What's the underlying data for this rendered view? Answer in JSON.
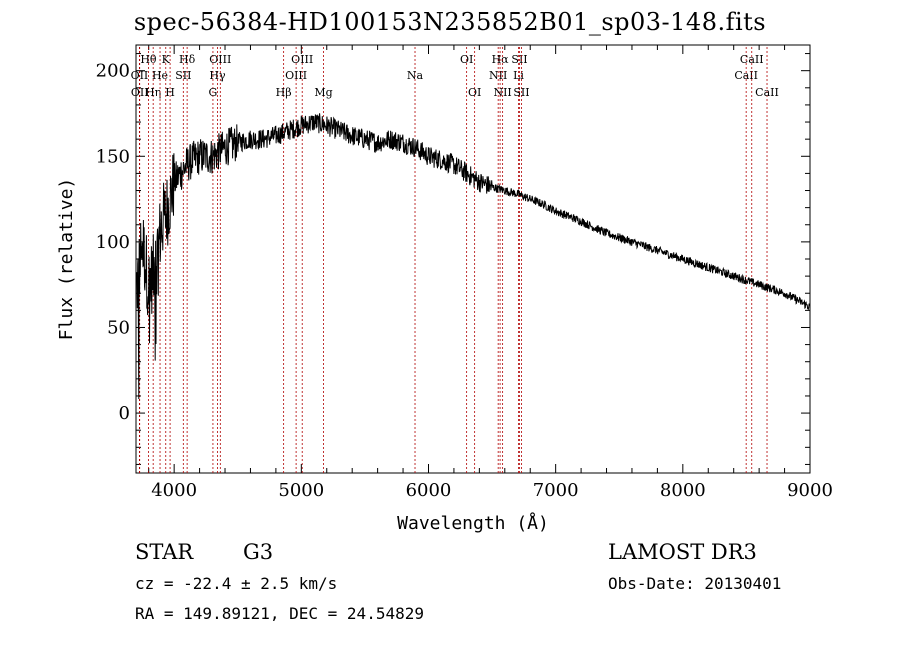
{
  "chart_data": {
    "type": "line",
    "title": "spec-56384-HD100153N235852B01_sp03-148.fits",
    "xlabel": "Wavelength (Å)",
    "ylabel": "Flux (relative)",
    "xlim": [
      3700,
      9000
    ],
    "ylim": [
      -35,
      215
    ],
    "xticks": [
      4000,
      5000,
      6000,
      7000,
      8000,
      9000
    ],
    "yticks": [
      0,
      50,
      100,
      150,
      200
    ],
    "series": [
      {
        "x": [
          3700,
          3750,
          3800,
          3850,
          3900,
          3950,
          4000,
          4050,
          4100,
          4150,
          4200,
          4300,
          4400,
          4500,
          4600,
          4700,
          4800,
          4900,
          5000,
          5100,
          5200,
          5300,
          5400,
          5500,
          5600,
          5700,
          5800,
          5900,
          6000,
          6100,
          6200,
          6300,
          6400,
          6500,
          6600,
          6700,
          6800,
          6900,
          7000,
          7200,
          7400,
          7600,
          7800,
          8000,
          8200,
          8400,
          8600,
          8800,
          9000
        ],
        "values": [
          70,
          100,
          75,
          85,
          110,
          120,
          135,
          140,
          145,
          148,
          150,
          150,
          155,
          158,
          160,
          160,
          162,
          165,
          168,
          170,
          168,
          165,
          162,
          160,
          158,
          160,
          158,
          155,
          150,
          148,
          145,
          140,
          135,
          132,
          130,
          128,
          125,
          122,
          118,
          112,
          105,
          100,
          95,
          90,
          85,
          80,
          75,
          70,
          62
        ]
      }
    ],
    "lines": [
      {
        "label": "Hθ",
        "wl": 3798,
        "row": 1
      },
      {
        "label": "OII",
        "wl": 3727,
        "row": 2
      },
      {
        "label": "OII",
        "wl": 3729,
        "row": 3
      },
      {
        "label": "Hη",
        "wl": 3835,
        "row": 3
      },
      {
        "label": "He",
        "wl": 3889,
        "row": 2
      },
      {
        "label": "K",
        "wl": 3934,
        "row": 1
      },
      {
        "label": "H",
        "wl": 3968,
        "row": 3
      },
      {
        "label": "SII",
        "wl": 4072,
        "row": 2
      },
      {
        "label": "Hδ",
        "wl": 4102,
        "row": 1
      },
      {
        "label": "G",
        "wl": 4305,
        "row": 3
      },
      {
        "label": "Hγ",
        "wl": 4341,
        "row": 2
      },
      {
        "label": "OIII",
        "wl": 4363,
        "row": 1
      },
      {
        "label": "Hβ",
        "wl": 4861,
        "row": 3
      },
      {
        "label": "OIII",
        "wl": 4959,
        "row": 2
      },
      {
        "label": "OIII",
        "wl": 5007,
        "row": 1
      },
      {
        "label": "Mg",
        "wl": 5175,
        "row": 3
      },
      {
        "label": "Na",
        "wl": 5894,
        "row": 2
      },
      {
        "label": "OI",
        "wl": 6300,
        "row": 1
      },
      {
        "label": "OI",
        "wl": 6363,
        "row": 3
      },
      {
        "label": "NII",
        "wl": 6548,
        "row": 2
      },
      {
        "label": "Hα",
        "wl": 6563,
        "row": 1
      },
      {
        "label": "NII",
        "wl": 6583,
        "row": 3
      },
      {
        "label": "SII",
        "wl": 6716,
        "row": 1
      },
      {
        "label": "Li",
        "wl": 6708,
        "row": 2
      },
      {
        "label": "SII",
        "wl": 6731,
        "row": 3
      },
      {
        "label": "CaII",
        "wl": 8498,
        "row": 2
      },
      {
        "label": "CaII",
        "wl": 8542,
        "row": 1
      },
      {
        "label": "CaII",
        "wl": 8662,
        "row": 3
      }
    ]
  },
  "info": {
    "class": "STAR",
    "subclass": "G3",
    "survey": "LAMOST DR3",
    "cz": "cz = -22.4 ± 2.5 km/s",
    "obs_date": "Obs-Date: 20130401",
    "coords": "RA = 149.89121, DEC =  24.54829"
  }
}
